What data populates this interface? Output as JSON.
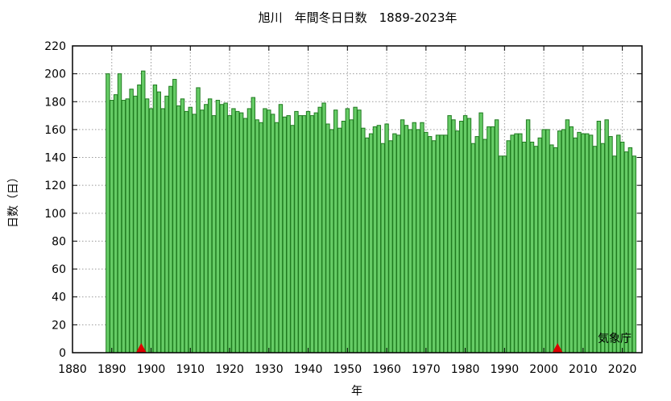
{
  "chart_data": {
    "type": "bar",
    "title": "旭川　年間冬日日数　1889-2023年",
    "xlabel": "年",
    "ylabel": "日数（日）",
    "credit": "気象庁",
    "xlim": [
      1880,
      2025
    ],
    "ylim": [
      0,
      220
    ],
    "xticks": [
      1880,
      1890,
      1900,
      1910,
      1920,
      1930,
      1940,
      1950,
      1960,
      1970,
      1980,
      1990,
      2000,
      2010,
      2020
    ],
    "yticks": [
      0,
      20,
      40,
      60,
      80,
      100,
      120,
      140,
      160,
      180,
      200,
      220
    ],
    "grid": true,
    "bar_color": "#66cc66",
    "bar_edge_color": "#1f7a1f",
    "marker_color": "#dd0000",
    "markers_x": [
      1897.5,
      2003.5
    ],
    "x_start": 1889,
    "values": [
      200,
      181,
      185,
      200,
      181,
      182,
      189,
      184,
      192,
      202,
      182,
      175,
      192,
      187,
      175,
      184,
      191,
      196,
      177,
      182,
      173,
      176,
      171,
      190,
      174,
      178,
      182,
      170,
      181,
      178,
      179,
      170,
      175,
      173,
      172,
      168,
      175,
      183,
      167,
      165,
      175,
      174,
      171,
      165,
      178,
      169,
      170,
      163,
      173,
      170,
      170,
      173,
      170,
      172,
      176,
      179,
      164,
      160,
      174,
      161,
      166,
      175,
      167,
      176,
      174,
      161,
      154,
      157,
      162,
      163,
      150,
      164,
      152,
      157,
      156,
      167,
      163,
      160,
      165,
      160,
      165,
      158,
      155,
      152,
      156,
      156,
      156,
      170,
      167,
      159,
      166,
      170,
      168,
      150,
      155,
      172,
      153,
      162,
      162,
      167,
      141,
      141,
      152,
      156,
      157,
      157,
      151,
      167,
      151,
      148,
      154,
      160,
      160,
      149,
      147,
      159,
      160,
      167,
      162,
      154,
      158,
      157,
      157,
      156,
      148,
      166,
      150,
      167,
      155,
      141,
      156,
      151,
      144,
      147,
      141
    ]
  }
}
